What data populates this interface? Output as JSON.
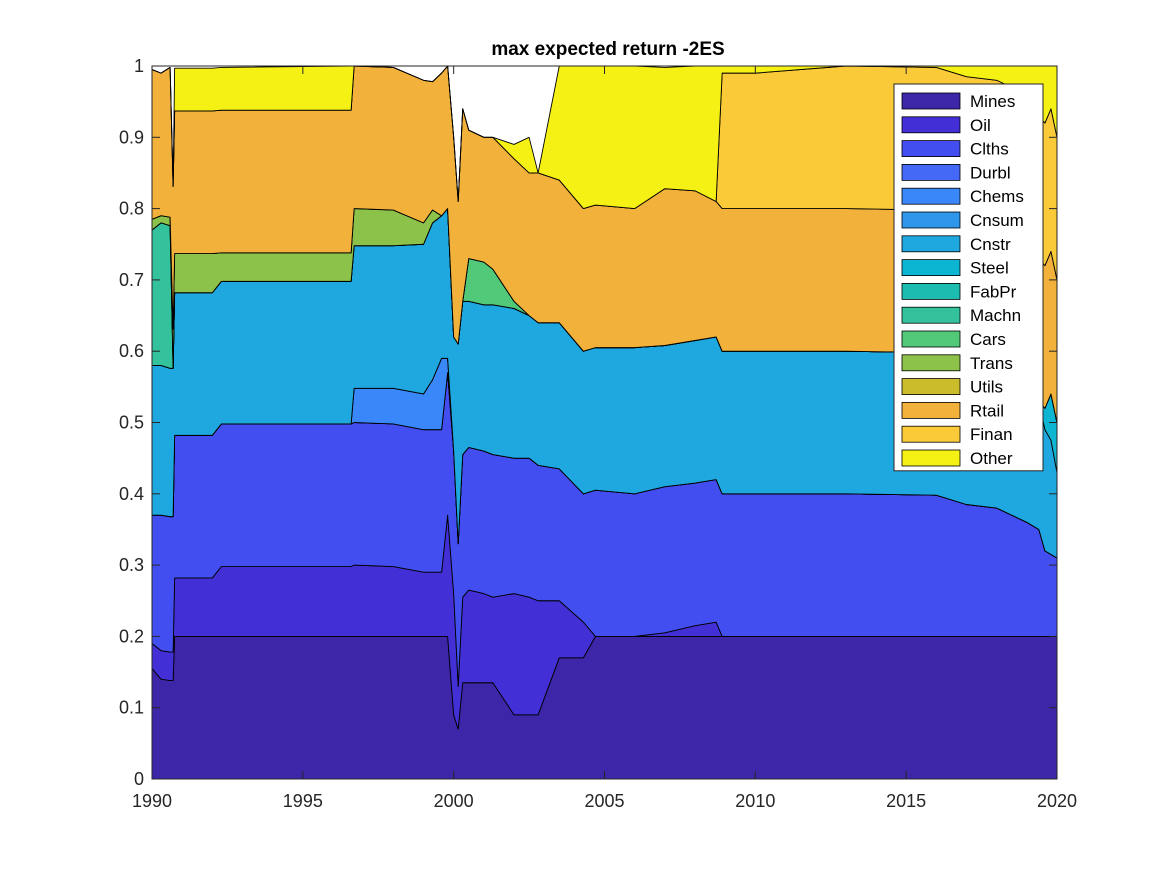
{
  "chart_data": {
    "type": "area",
    "title": "max expected return -2ES",
    "xlabel": "",
    "ylabel": "",
    "xlim": [
      1990,
      2020
    ],
    "ylim": [
      0,
      1
    ],
    "x_ticks": [
      "1990",
      "1995",
      "2000",
      "2005",
      "2010",
      "2015",
      "2020"
    ],
    "y_ticks": [
      "0",
      "0.1",
      "0.2",
      "0.3",
      "0.4",
      "0.5",
      "0.6",
      "0.7",
      "0.8",
      "0.9",
      "1"
    ],
    "legend_position": "top-right",
    "grid": false,
    "stacked": true,
    "x": [
      1990.0,
      1990.3,
      1990.6,
      1990.7,
      1990.75,
      1992.0,
      1992.3,
      1996.6,
      1996.7,
      1998.0,
      1999.0,
      1999.3,
      1999.6,
      1999.8,
      2000.0,
      2000.15,
      2000.3,
      2000.5,
      2001.0,
      2001.3,
      2002.0,
      2002.5,
      2002.8,
      2003.5,
      2004.3,
      2004.7,
      2006.0,
      2007.0,
      2008.0,
      2008.7,
      2008.9,
      2010.0,
      2013.0,
      2016.0,
      2017.0,
      2018.0,
      2019.0,
      2019.4,
      2019.6,
      2019.8,
      2020.0
    ],
    "series": [
      {
        "name": "Mines",
        "color": "#3d26a8",
        "values": [
          0.155,
          0.14,
          0.138,
          0.138,
          0.2,
          0.2,
          0.2,
          0.2,
          0.2,
          0.2,
          0.2,
          0.2,
          0.2,
          0.2,
          0.09,
          0.07,
          0.135,
          0.135,
          0.135,
          0.135,
          0.09,
          0.09,
          0.09,
          0.17,
          0.17,
          0.2,
          0.2,
          0.2,
          0.2,
          0.2,
          0.2,
          0.2,
          0.2,
          0.2,
          0.2,
          0.2,
          0.2,
          0.2,
          0.2,
          0.2,
          0.2
        ]
      },
      {
        "name": "Oil",
        "color": "#4230d6",
        "values": [
          0.035,
          0.04,
          0.04,
          0.04,
          0.082,
          0.082,
          0.098,
          0.098,
          0.1,
          0.098,
          0.09,
          0.09,
          0.09,
          0.17,
          0.17,
          0.06,
          0.12,
          0.13,
          0.125,
          0.12,
          0.17,
          0.165,
          0.16,
          0.08,
          0.05,
          0.0,
          0.0,
          0.005,
          0.015,
          0.02,
          0.0,
          0.0,
          0.0,
          0.0,
          0.0,
          0.0,
          0.0,
          0.0,
          0.0,
          0.0,
          0.0
        ]
      },
      {
        "name": "Clths",
        "color": "#434ef0",
        "values": [
          0.18,
          0.19,
          0.19,
          0.19,
          0.2,
          0.2,
          0.2,
          0.2,
          0.2,
          0.2,
          0.2,
          0.2,
          0.2,
          0.2,
          0.2,
          0.2,
          0.2,
          0.2,
          0.2,
          0.2,
          0.19,
          0.195,
          0.19,
          0.185,
          0.18,
          0.205,
          0.2,
          0.205,
          0.2,
          0.2,
          0.2,
          0.2,
          0.2,
          0.198,
          0.185,
          0.18,
          0.16,
          0.15,
          0.12,
          0.115,
          0.11
        ]
      },
      {
        "name": "Durbl",
        "color": "#4569f7",
        "values": [
          0.0,
          0.0,
          0.0,
          0.0,
          0.0,
          0.0,
          0.0,
          0.0,
          0.0,
          0.0,
          0.0,
          0.0,
          0.0,
          0.0,
          0.0,
          0.0,
          0.0,
          0.0,
          0.0,
          0.0,
          0.0,
          0.0,
          0.0,
          0.0,
          0.0,
          0.0,
          0.0,
          0.0,
          0.0,
          0.0,
          0.0,
          0.0,
          0.0,
          0.0,
          0.0,
          0.0,
          0.0,
          0.0,
          0.0,
          0.0,
          0.0
        ]
      },
      {
        "name": "Chems",
        "color": "#3987f9",
        "values": [
          0.0,
          0.0,
          0.0,
          0.0,
          0.0,
          0.0,
          0.0,
          0.0,
          0.048,
          0.05,
          0.05,
          0.07,
          0.1,
          0.02,
          0.0,
          0.0,
          0.0,
          0.0,
          0.0,
          0.0,
          0.0,
          0.0,
          0.0,
          0.0,
          0.0,
          0.0,
          0.0,
          0.0,
          0.0,
          0.0,
          0.0,
          0.0,
          0.0,
          0.0,
          0.0,
          0.0,
          0.0,
          0.0,
          0.0,
          0.0,
          0.0
        ]
      },
      {
        "name": "Cnsum",
        "color": "#2e97ec",
        "values": [
          0.0,
          0.0,
          0.0,
          0.0,
          0.0,
          0.0,
          0.0,
          0.0,
          0.0,
          0.0,
          0.0,
          0.0,
          0.0,
          0.0,
          0.0,
          0.0,
          0.0,
          0.0,
          0.0,
          0.0,
          0.0,
          0.0,
          0.0,
          0.0,
          0.0,
          0.0,
          0.0,
          0.0,
          0.0,
          0.0,
          0.0,
          0.0,
          0.0,
          0.0,
          0.0,
          0.0,
          0.0,
          0.0,
          0.0,
          0.0,
          0.0
        ]
      },
      {
        "name": "Cnstr",
        "color": "#1fa8e0",
        "values": [
          0.21,
          0.21,
          0.208,
          0.208,
          0.2,
          0.2,
          0.2,
          0.2,
          0.2,
          0.2,
          0.21,
          0.22,
          0.2,
          0.21,
          0.16,
          0.28,
          0.215,
          0.205,
          0.205,
          0.21,
          0.21,
          0.2,
          0.2,
          0.205,
          0.2,
          0.2,
          0.205,
          0.198,
          0.2,
          0.2,
          0.2,
          0.2,
          0.2,
          0.2,
          0.2,
          0.2,
          0.2,
          0.18,
          0.17,
          0.16,
          0.12
        ]
      },
      {
        "name": "Steel",
        "color": "#0cb5d1",
        "values": [
          0.0,
          0.0,
          0.0,
          0.0,
          0.0,
          0.0,
          0.0,
          0.0,
          0.0,
          0.0,
          0.0,
          0.0,
          0.0,
          0.0,
          0.0,
          0.0,
          0.0,
          0.0,
          0.0,
          0.0,
          0.0,
          0.0,
          0.0,
          0.0,
          0.0,
          0.0,
          0.0,
          0.0,
          0.0,
          0.0,
          0.0,
          0.0,
          0.0,
          0.0,
          0.0,
          0.0,
          0.0,
          0.0,
          0.03,
          0.065,
          0.07
        ]
      },
      {
        "name": "FabPr",
        "color": "#1cbcb0",
        "values": [
          0.0,
          0.0,
          0.0,
          0.0,
          0.0,
          0.0,
          0.0,
          0.0,
          0.0,
          0.0,
          0.0,
          0.0,
          0.0,
          0.0,
          0.0,
          0.0,
          0.0,
          0.0,
          0.0,
          0.0,
          0.0,
          0.0,
          0.0,
          0.0,
          0.0,
          0.0,
          0.0,
          0.0,
          0.0,
          0.0,
          0.0,
          0.0,
          0.0,
          0.0,
          0.0,
          0.0,
          0.0,
          0.0,
          0.0,
          0.0,
          0.0
        ]
      },
      {
        "name": "Machn",
        "color": "#33c29c",
        "values": [
          0.19,
          0.2,
          0.2,
          0.0,
          0.0,
          0.0,
          0.0,
          0.0,
          0.0,
          0.0,
          0.0,
          0.0,
          0.0,
          0.0,
          0.0,
          0.0,
          0.0,
          0.0,
          0.0,
          0.0,
          0.0,
          0.0,
          0.0,
          0.0,
          0.0,
          0.0,
          0.0,
          0.0,
          0.0,
          0.0,
          0.0,
          0.0,
          0.0,
          0.0,
          0.0,
          0.0,
          0.0,
          0.0,
          0.0,
          0.0,
          0.0
        ]
      },
      {
        "name": "Cars",
        "color": "#52c879",
        "values": [
          0.0,
          0.0,
          0.0,
          0.0,
          0.0,
          0.0,
          0.0,
          0.0,
          0.0,
          0.0,
          0.0,
          0.0,
          0.0,
          0.0,
          0.0,
          0.0,
          0.0,
          0.06,
          0.06,
          0.05,
          0.01,
          0.0,
          0.0,
          0.0,
          0.0,
          0.0,
          0.0,
          0.0,
          0.0,
          0.0,
          0.0,
          0.0,
          0.0,
          0.0,
          0.0,
          0.0,
          0.0,
          0.0,
          0.0,
          0.0,
          0.0
        ]
      },
      {
        "name": "Trans",
        "color": "#8dc24a",
        "values": [
          0.015,
          0.01,
          0.012,
          0.055,
          0.055,
          0.055,
          0.04,
          0.04,
          0.052,
          0.05,
          0.03,
          0.018,
          0.0,
          0.0,
          0.0,
          0.0,
          0.0,
          0.0,
          0.0,
          0.0,
          0.0,
          0.0,
          0.0,
          0.0,
          0.0,
          0.0,
          0.0,
          0.0,
          0.0,
          0.0,
          0.0,
          0.0,
          0.0,
          0.0,
          0.0,
          0.0,
          0.0,
          0.0,
          0.0,
          0.0,
          0.0
        ]
      },
      {
        "name": "Utils",
        "color": "#cabc2a",
        "values": [
          0.0,
          0.0,
          0.0,
          0.0,
          0.0,
          0.0,
          0.0,
          0.0,
          0.0,
          0.0,
          0.0,
          0.0,
          0.0,
          0.0,
          0.0,
          0.0,
          0.0,
          0.0,
          0.0,
          0.0,
          0.0,
          0.0,
          0.0,
          0.0,
          0.0,
          0.0,
          0.0,
          0.0,
          0.0,
          0.0,
          0.0,
          0.0,
          0.0,
          0.0,
          0.0,
          0.0,
          0.0,
          0.0,
          0.0,
          0.0,
          0.0
        ]
      },
      {
        "name": "Rtail",
        "color": "#f1b13a",
        "values": [
          0.21,
          0.2,
          0.21,
          0.2,
          0.2,
          0.2,
          0.2,
          0.2,
          0.2,
          0.2,
          0.2,
          0.18,
          0.2,
          0.2,
          0.28,
          0.2,
          0.27,
          0.18,
          0.175,
          0.185,
          0.2,
          0.2,
          0.21,
          0.2,
          0.2,
          0.2,
          0.195,
          0.22,
          0.21,
          0.19,
          0.2,
          0.2,
          0.2,
          0.2,
          0.2,
          0.2,
          0.2,
          0.2,
          0.2,
          0.2,
          0.2
        ]
      },
      {
        "name": "Finan",
        "color": "#fbca38",
        "values": [
          0.0,
          0.0,
          0.0,
          0.0,
          0.0,
          0.0,
          0.0,
          0.0,
          0.0,
          0.0,
          0.0,
          0.0,
          0.0,
          0.0,
          0.0,
          0.0,
          0.0,
          0.0,
          0.0,
          0.0,
          0.0,
          0.0,
          0.0,
          0.0,
          0.0,
          0.0,
          0.0,
          0.0,
          0.0,
          0.0,
          0.19,
          0.19,
          0.2,
          0.2,
          0.2,
          0.2,
          0.2,
          0.2,
          0.2,
          0.2,
          0.2
        ]
      },
      {
        "name": "Other",
        "color": "#f5f114",
        "values": [
          0.0,
          0.0,
          0.0,
          0.0,
          0.06,
          0.06,
          0.06,
          0.062,
          0.0,
          0.0,
          0.0,
          0.0,
          0.0,
          0.0,
          0.0,
          0.0,
          0.0,
          0.0,
          0.0,
          0.0,
          0.02,
          0.05,
          0.0,
          0.16,
          0.2,
          0.195,
          0.2,
          0.17,
          0.175,
          0.19,
          0.01,
          0.01,
          0.0,
          0.002,
          0.015,
          0.02,
          0.04,
          0.07,
          0.08,
          0.06,
          0.1
        ]
      }
    ]
  }
}
